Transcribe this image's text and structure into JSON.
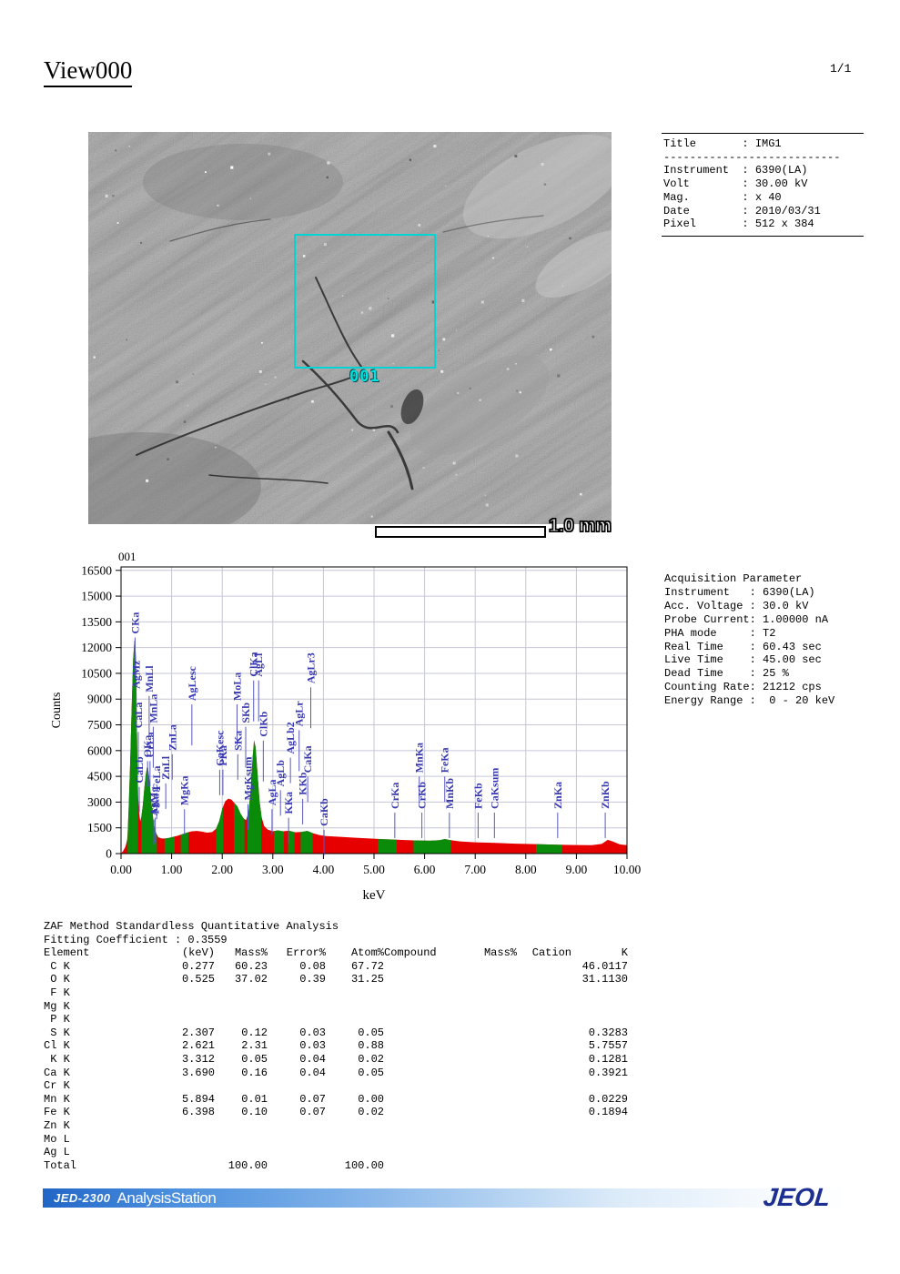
{
  "page": {
    "title": "View000",
    "page_number": "1/1"
  },
  "image_panel": {
    "roi_label": "001",
    "scale_label": "1.0 mm"
  },
  "info_box": {
    "lines": [
      "Title       : IMG1",
      "---------------------------",
      "Instrument  : 6390(LA)",
      "Volt        : 30.00 kV",
      "Mag.        : x 40",
      "Date        : 2010/03/31",
      "Pixel       : 512 x 384"
    ]
  },
  "acquisition": {
    "lines": [
      "Acquisition Parameter",
      "Instrument   : 6390(LA)",
      "Acc. Voltage : 30.0 kV",
      "Probe Current: 1.00000 nA",
      "PHA mode     : T2",
      "Real Time    : 60.43 sec",
      "Live Time    : 45.00 sec",
      "Dead Time    : 25 %",
      "Counting Rate: 21212 cps",
      "Energy Range :  0 - 20 keV"
    ]
  },
  "chart_data": {
    "type": "area",
    "title": "001",
    "xlabel": "keV",
    "ylabel": "Counts",
    "xlim": [
      0,
      10
    ],
    "ylim": [
      0,
      16700
    ],
    "x_tick_step": 1,
    "y_tick_step": 1500,
    "y_tick_max": 16500,
    "grid": true,
    "colors": {
      "peak": "#0a8c0a",
      "background": "#e60000",
      "label": "#3838b0",
      "tickline": "#5858c0",
      "grid": "#c6c6d6"
    },
    "spectrum": [
      [
        0.0,
        0
      ],
      [
        0.04,
        150
      ],
      [
        0.08,
        350
      ],
      [
        0.1,
        550
      ],
      [
        0.12,
        800
      ],
      [
        0.13,
        1100
      ],
      [
        0.15,
        2500
      ],
      [
        0.18,
        5200
      ],
      [
        0.21,
        8500
      ],
      [
        0.24,
        11300
      ],
      [
        0.265,
        12400
      ],
      [
        0.28,
        12450
      ],
      [
        0.295,
        11200
      ],
      [
        0.31,
        8200
      ],
      [
        0.325,
        5000
      ],
      [
        0.34,
        3200
      ],
      [
        0.36,
        2300
      ],
      [
        0.38,
        1900
      ],
      [
        0.4,
        2100
      ],
      [
        0.43,
        2800
      ],
      [
        0.46,
        3800
      ],
      [
        0.49,
        4600
      ],
      [
        0.515,
        5050
      ],
      [
        0.53,
        5050
      ],
      [
        0.55,
        4600
      ],
      [
        0.58,
        3700
      ],
      [
        0.61,
        2700
      ],
      [
        0.64,
        1900
      ],
      [
        0.67,
        1400
      ],
      [
        0.7,
        1150
      ],
      [
        0.74,
        950
      ],
      [
        0.8,
        880
      ],
      [
        0.88,
        880
      ],
      [
        0.96,
        920
      ],
      [
        1.04,
        980
      ],
      [
        1.12,
        1040
      ],
      [
        1.2,
        1120
      ],
      [
        1.3,
        1220
      ],
      [
        1.4,
        1300
      ],
      [
        1.5,
        1320
      ],
      [
        1.6,
        1280
      ],
      [
        1.7,
        1220
      ],
      [
        1.8,
        1250
      ],
      [
        1.88,
        1450
      ],
      [
        1.94,
        1900
      ],
      [
        2.0,
        2600
      ],
      [
        2.06,
        3050
      ],
      [
        2.12,
        3200
      ],
      [
        2.18,
        3150
      ],
      [
        2.24,
        2950
      ],
      [
        2.3,
        2750
      ],
      [
        2.36,
        2350
      ],
      [
        2.42,
        2050
      ],
      [
        2.47,
        1950
      ],
      [
        2.52,
        2400
      ],
      [
        2.56,
        3600
      ],
      [
        2.6,
        5600
      ],
      [
        2.63,
        6600
      ],
      [
        2.66,
        6200
      ],
      [
        2.7,
        4600
      ],
      [
        2.74,
        3000
      ],
      [
        2.78,
        2100
      ],
      [
        2.83,
        1600
      ],
      [
        2.9,
        1400
      ],
      [
        3.0,
        1300
      ],
      [
        3.1,
        1350
      ],
      [
        3.2,
        1300
      ],
      [
        3.32,
        1330
      ],
      [
        3.44,
        1240
      ],
      [
        3.56,
        1260
      ],
      [
        3.68,
        1320
      ],
      [
        3.8,
        1180
      ],
      [
        3.92,
        1080
      ],
      [
        4.05,
        1020
      ],
      [
        4.3,
        980
      ],
      [
        4.6,
        930
      ],
      [
        4.9,
        880
      ],
      [
        5.2,
        840
      ],
      [
        5.5,
        800
      ],
      [
        5.8,
        770
      ],
      [
        6.1,
        750
      ],
      [
        6.3,
        780
      ],
      [
        6.4,
        850
      ],
      [
        6.5,
        790
      ],
      [
        6.7,
        710
      ],
      [
        7.0,
        660
      ],
      [
        7.4,
        620
      ],
      [
        7.8,
        580
      ],
      [
        8.2,
        550
      ],
      [
        8.6,
        520
      ],
      [
        9.0,
        500
      ],
      [
        9.3,
        490
      ],
      [
        9.5,
        560
      ],
      [
        9.62,
        800
      ],
      [
        9.72,
        700
      ],
      [
        9.85,
        540
      ],
      [
        10.0,
        490
      ]
    ],
    "green_bands": [
      [
        0.13,
        0.335
      ],
      [
        0.4,
        0.71
      ],
      [
        0.86,
        1.06
      ],
      [
        1.18,
        1.33
      ],
      [
        1.88,
        2.02
      ],
      [
        2.23,
        2.44
      ],
      [
        2.5,
        2.77
      ],
      [
        3.02,
        3.22
      ],
      [
        3.3,
        3.43
      ],
      [
        3.55,
        3.79
      ],
      [
        5.08,
        5.45
      ],
      [
        5.78,
        6.52
      ],
      [
        8.2,
        8.72
      ]
    ],
    "peak_labels": [
      {
        "text": "CKa",
        "keV": 0.277,
        "base": 12800
      },
      {
        "text": "AgMz",
        "keV": 0.3,
        "base": 9600
      },
      {
        "text": "CaLa",
        "keV": 0.341,
        "base": 7300
      },
      {
        "text": "CaLb",
        "keV": 0.36,
        "base": 4100
      },
      {
        "text": "OKa",
        "keV": 0.525,
        "base": 5600
      },
      {
        "text": "MnLl",
        "keV": 0.556,
        "base": 9400
      },
      {
        "text": "CrLa",
        "keV": 0.573,
        "base": 5600
      },
      {
        "text": "MnLa",
        "keV": 0.637,
        "base": 7600
      },
      {
        "text": "AgMg",
        "keV": 0.65,
        "base": 2200
      },
      {
        "text": "FKa",
        "keV": 0.677,
        "base": 2300
      },
      {
        "text": "FeLa",
        "keV": 0.705,
        "base": 3700
      },
      {
        "text": "ZnLl",
        "keV": 0.884,
        "base": 4300
      },
      {
        "text": "ZnLa",
        "keV": 1.012,
        "base": 6000
      },
      {
        "text": "MgKa",
        "keV": 1.254,
        "base": 2800
      },
      {
        "text": "AgLesc",
        "keV": 1.4,
        "base": 8900
      },
      {
        "text": "CaKesc",
        "keV": 1.95,
        "base": 5100
      },
      {
        "text": "PKa",
        "keV": 2.013,
        "base": 5100
      },
      {
        "text": "MoLa",
        "keV": 2.293,
        "base": 8900
      },
      {
        "text": "SKa",
        "keV": 2.307,
        "base": 6000
      },
      {
        "text": "SKb",
        "keV": 2.464,
        "base": 7600
      },
      {
        "text": "MgKsum",
        "keV": 2.508,
        "base": 3100
      },
      {
        "text": "ClKa",
        "keV": 2.621,
        "base": 10300
      },
      {
        "text": "AgLl",
        "keV": 2.72,
        "base": 10300
      },
      {
        "text": "ClKb",
        "keV": 2.812,
        "base": 6800
      },
      {
        "text": "AgLa",
        "keV": 2.984,
        "base": 2800
      },
      {
        "text": "AgLb",
        "keV": 3.151,
        "base": 3900
      },
      {
        "text": "KKa",
        "keV": 3.312,
        "base": 2300
      },
      {
        "text": "AgLb2",
        "keV": 3.348,
        "base": 5800
      },
      {
        "text": "AgLr",
        "keV": 3.52,
        "base": 7400
      },
      {
        "text": "KKb",
        "keV": 3.59,
        "base": 3400
      },
      {
        "text": "CaKa",
        "keV": 3.69,
        "base": 4700
      },
      {
        "text": "AgLr3",
        "keV": 3.75,
        "base": 9900
      },
      {
        "text": "CaKb",
        "keV": 4.012,
        "base": 1600
      },
      {
        "text": "CrKa",
        "keV": 5.411,
        "base": 2600
      },
      {
        "text": "MnKa",
        "keV": 5.894,
        "base": 4700
      },
      {
        "text": "CrKb",
        "keV": 5.946,
        "base": 2600
      },
      {
        "text": "FeKa",
        "keV": 6.398,
        "base": 4700
      },
      {
        "text": "MnKb",
        "keV": 6.49,
        "base": 2600
      },
      {
        "text": "FeKb",
        "keV": 7.057,
        "base": 2600
      },
      {
        "text": "CaKsum",
        "keV": 7.38,
        "base": 2600
      },
      {
        "text": "ZnKa",
        "keV": 8.63,
        "base": 2600
      },
      {
        "text": "ZnKb",
        "keV": 9.57,
        "base": 2600
      }
    ]
  },
  "quant": {
    "title": "ZAF Method Standardless Quantitative Analysis",
    "fitting": "Fitting Coefficient : 0.3559",
    "headers": [
      "Element",
      "(keV)",
      "Mass%",
      "Error%",
      "Atom%",
      "Compound",
      "Mass%",
      "Cation",
      "K"
    ],
    "rows": [
      [
        " C K",
        "0.277",
        "60.23",
        "0.08",
        "67.72",
        "",
        "",
        "",
        "46.0117"
      ],
      [
        " O K",
        "0.525",
        "37.02",
        "0.39",
        "31.25",
        "",
        "",
        "",
        "31.1130"
      ],
      [
        " F K",
        "",
        "",
        "",
        "",
        "",
        "",
        "",
        ""
      ],
      [
        "Mg K",
        "",
        "",
        "",
        "",
        "",
        "",
        "",
        ""
      ],
      [
        " P K",
        "",
        "",
        "",
        "",
        "",
        "",
        "",
        ""
      ],
      [
        " S K",
        "2.307",
        "0.12",
        "0.03",
        "0.05",
        "",
        "",
        "",
        "0.3283"
      ],
      [
        "Cl K",
        "2.621",
        "2.31",
        "0.03",
        "0.88",
        "",
        "",
        "",
        "5.7557"
      ],
      [
        " K K",
        "3.312",
        "0.05",
        "0.04",
        "0.02",
        "",
        "",
        "",
        "0.1281"
      ],
      [
        "Ca K",
        "3.690",
        "0.16",
        "0.04",
        "0.05",
        "",
        "",
        "",
        "0.3921"
      ],
      [
        "Cr K",
        "",
        "",
        "",
        "",
        "",
        "",
        "",
        ""
      ],
      [
        "Mn K",
        "5.894",
        "0.01",
        "0.07",
        "0.00",
        "",
        "",
        "",
        "0.0229"
      ],
      [
        "Fe K",
        "6.398",
        "0.10",
        "0.07",
        "0.02",
        "",
        "",
        "",
        "0.1894"
      ],
      [
        "Zn K",
        "",
        "",
        "",
        "",
        "",
        "",
        "",
        ""
      ],
      [
        "Mo L",
        "",
        "",
        "",
        "",
        "",
        "",
        "",
        ""
      ],
      [
        "Ag L",
        "",
        "",
        "",
        "",
        "",
        "",
        "",
        ""
      ],
      [
        "Total",
        "",
        "100.00",
        "",
        "100.00",
        "",
        "",
        "",
        ""
      ]
    ]
  },
  "footer": {
    "model": "JED-2300",
    "app": "AnalysisStation",
    "logo": "JEOL"
  }
}
